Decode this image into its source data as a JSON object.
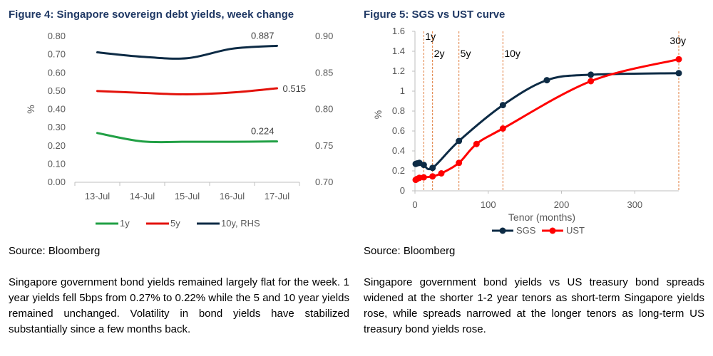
{
  "figure4": {
    "title": "Figure 4: Singapore sovereign debt yields, week change",
    "source": "Source: Bloomberg",
    "paragraph": "Singapore government bond yields remained largely flat for the week. 1 year yields fell 5bps from 0.27% to 0.22% while the 5 and 10 year yields remained unchanged. Volatility in bond yields have stabilized substantially since a few months back."
  },
  "figure5": {
    "title": "Figure 5: SGS vs UST curve",
    "source": "Source: Bloomberg",
    "paragraph": "Singapore government bond yields vs US treasury bond spreads widened at the shorter 1-2 year tenors as short-term Singapore yields rose, while spreads narrowed at the longer tenors as long-term US treasury bond yields rose."
  },
  "chart_data": [
    {
      "type": "line",
      "title": "Figure 4: Singapore sovereign debt yields, week change",
      "ylabel": "%",
      "categories": [
        "13-Jul",
        "14-Jul",
        "15-Jul",
        "16-Jul",
        "17-Jul"
      ],
      "ylim": [
        0,
        0.8
      ],
      "yticks": [
        "0.00",
        "0.10",
        "0.20",
        "0.30",
        "0.40",
        "0.50",
        "0.60",
        "0.70",
        "0.80"
      ],
      "y2lim": [
        0.7,
        0.9
      ],
      "y2ticks": [
        "0.70",
        "0.75",
        "0.80",
        "0.85",
        "0.90"
      ],
      "grid": false,
      "legend": "bottom",
      "series": [
        {
          "name": "1y",
          "axis": "left",
          "color": "#21a045",
          "values": [
            0.27,
            0.224,
            0.222,
            0.222,
            0.224
          ],
          "end_label": "0.224"
        },
        {
          "name": "5y",
          "axis": "left",
          "color": "#e3120b",
          "values": [
            0.5,
            0.49,
            0.482,
            0.492,
            0.515
          ],
          "end_label": "0.515"
        },
        {
          "name": "10y, RHS",
          "axis": "right",
          "color": "#0d2b45",
          "values": [
            0.878,
            0.872,
            0.87,
            0.883,
            0.887
          ],
          "end_label": "0.887"
        }
      ]
    },
    {
      "type": "line",
      "title": "Figure 5: SGS vs UST curve",
      "xlabel": "Tenor (months)",
      "ylabel": "%",
      "xlim": [
        0,
        360
      ],
      "xticks": [
        0,
        100,
        200,
        300
      ],
      "ylim": [
        0,
        1.6
      ],
      "yticks": [
        "0",
        "0.2",
        "0.4",
        "0.6",
        "0.8",
        "1",
        "1.2",
        "1.4",
        "1.6"
      ],
      "grid": false,
      "legend": "bottom",
      "reference_lines": [
        {
          "x": 12,
          "label": "1y"
        },
        {
          "x": 24,
          "label": "2y"
        },
        {
          "x": 60,
          "label": "5y"
        },
        {
          "x": 120,
          "label": "10y"
        },
        {
          "x": 360,
          "label": "30y"
        }
      ],
      "series": [
        {
          "name": "SGS",
          "color": "#0d2b45",
          "x": [
            1,
            3,
            6,
            12,
            24,
            60,
            120,
            180,
            240,
            360
          ],
          "y": [
            0.27,
            0.275,
            0.28,
            0.26,
            0.23,
            0.5,
            0.86,
            1.11,
            1.165,
            1.18
          ]
        },
        {
          "name": "UST",
          "color": "#ff0000",
          "x": [
            1,
            3,
            6,
            12,
            24,
            36,
            60,
            84,
            120,
            240,
            360
          ],
          "y": [
            0.11,
            0.12,
            0.13,
            0.135,
            0.145,
            0.175,
            0.28,
            0.47,
            0.625,
            1.1,
            1.32
          ]
        }
      ]
    }
  ]
}
